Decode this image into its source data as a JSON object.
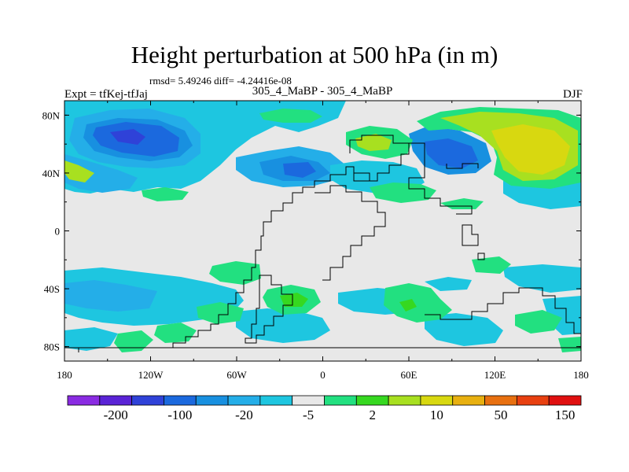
{
  "figure": {
    "title": "Height perturbation at 500 hPa (in m)",
    "stats_line": "rmsd= 5.49246 diff= -4.24416e-08",
    "left_label": "Expt = tfKej-tfJaj",
    "center_label": "305_4_MaBP - 305_4_MaBP",
    "right_label": "DJF"
  },
  "map": {
    "lon_ticks": [
      "180",
      "120W",
      "60W",
      "0",
      "60E",
      "120E",
      "180"
    ],
    "lat_ticks": [
      "80N",
      "40N",
      "0",
      "40S",
      "80S"
    ]
  },
  "colorbar": {
    "colors": [
      "#8a2be2",
      "#5a23d6",
      "#2f42d8",
      "#1b69de",
      "#1890e0",
      "#24aee8",
      "#1ec6e0",
      "#e8e8e8",
      "#22e080",
      "#36d820",
      "#a8e020",
      "#d8d810",
      "#e8b010",
      "#e87010",
      "#e84010",
      "#e01010"
    ],
    "labels": [
      "-200",
      "-100",
      "-20",
      "-5",
      "2",
      "10",
      "50",
      "150"
    ]
  }
}
